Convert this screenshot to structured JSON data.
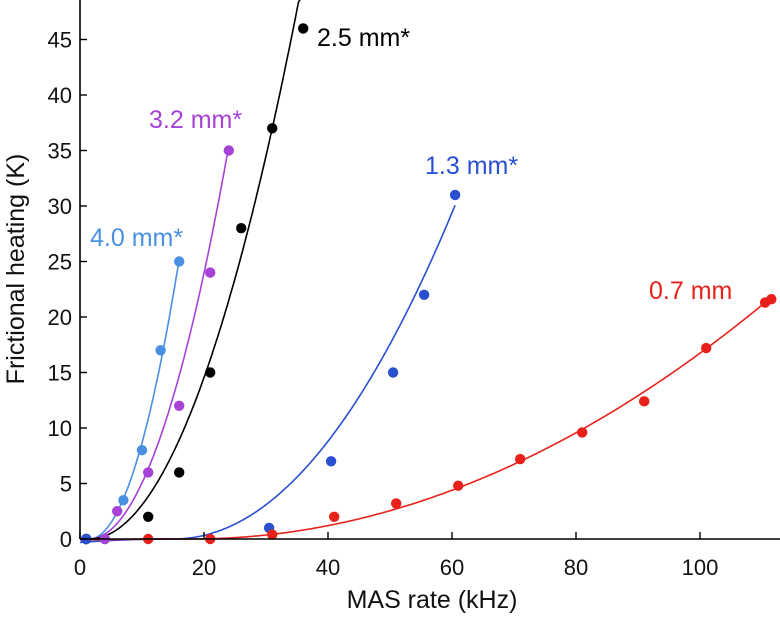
{
  "chart_data": {
    "type": "scatter",
    "xlabel": "MAS rate (kHz)",
    "ylabel": "Frictional heating (K)",
    "xlim": [
      0,
      112
    ],
    "ylim": [
      0,
      48
    ],
    "xticks": [
      0,
      20,
      40,
      60,
      80,
      100
    ],
    "yticks": [
      0,
      5,
      10,
      15,
      20,
      25,
      30,
      35,
      40,
      45
    ],
    "grid": false,
    "series": [
      {
        "name": "4.0 mm*",
        "label": "4.0 mm*",
        "color": "#4a90e2",
        "points": [
          [
            1,
            0
          ],
          [
            4,
            0
          ],
          [
            7,
            3.5
          ],
          [
            10,
            8
          ],
          [
            13,
            17
          ],
          [
            16,
            25
          ]
        ],
        "fit": {
          "a": 0.12,
          "x0": 1.5,
          "n": 2,
          "xmax": 16
        }
      },
      {
        "name": "3.2 mm*",
        "label": "3.2 mm*",
        "color": "#a642d6",
        "points": [
          [
            1,
            0
          ],
          [
            4,
            0
          ],
          [
            6,
            2.5
          ],
          [
            11,
            6
          ],
          [
            16,
            12
          ],
          [
            21,
            24
          ],
          [
            24,
            35
          ]
        ],
        "fit": {
          "a": 0.07,
          "x0": 1.5,
          "n": 2,
          "xmax": 24
        }
      },
      {
        "name": "2.5 mm*",
        "label": "2.5 mm*",
        "color": "#000000",
        "points": [
          [
            1,
            0
          ],
          [
            11,
            2
          ],
          [
            16,
            6
          ],
          [
            21,
            15
          ],
          [
            26,
            28
          ],
          [
            31,
            37
          ],
          [
            36,
            46
          ]
        ],
        "fit": {
          "a": 0.0425,
          "x0": 1.5,
          "n": 2,
          "xmax": 36.6
        }
      },
      {
        "name": "1.3 mm*",
        "label": "1.3 mm*",
        "color": "#2a4fd0",
        "points": [
          [
            1,
            0
          ],
          [
            30.5,
            1
          ],
          [
            40.5,
            7
          ],
          [
            50.5,
            15
          ],
          [
            55.5,
            22
          ],
          [
            60.5,
            31
          ]
        ],
        "fit": {
          "a": 0.012,
          "x0": 15,
          "n": 2.05,
          "xmax": 60.5
        }
      },
      {
        "name": "0.7 mm",
        "label": "0.7 mm",
        "color": "#e8211b",
        "points": [
          [
            11,
            0
          ],
          [
            21,
            0
          ],
          [
            31,
            0.4
          ],
          [
            41,
            2
          ],
          [
            51,
            3.2
          ],
          [
            61,
            4.8
          ],
          [
            71,
            7.2
          ],
          [
            81,
            9.6
          ],
          [
            91,
            12.4
          ],
          [
            101,
            17.2
          ],
          [
            110.5,
            21.3
          ],
          [
            111.5,
            21.6
          ]
        ],
        "fit": {
          "a": 0.00249,
          "x0": 18,
          "n": 2,
          "xmax": 112
        }
      }
    ]
  }
}
